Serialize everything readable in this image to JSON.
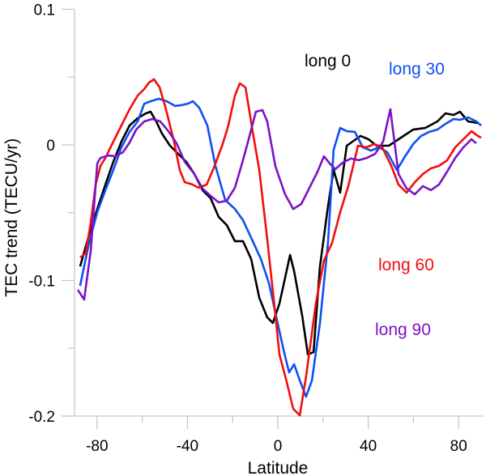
{
  "chart_data": {
    "type": "line",
    "title": "",
    "xlabel": "Latitude",
    "ylabel": "TEC trend (TECU/yr)",
    "xlim": [
      -90,
      90
    ],
    "ylim": [
      -0.2,
      0.1
    ],
    "x_ticks": [
      -80,
      -40,
      0,
      40,
      80
    ],
    "x_tick_labels": [
      "-80",
      "-40",
      "0",
      "40",
      "80"
    ],
    "x_minor_ticks": [
      -60,
      -20,
      20,
      60
    ],
    "y_ticks": [
      0.1,
      0,
      -0.1,
      -0.2
    ],
    "y_tick_labels": [
      "0.1",
      "0",
      "-0.1",
      "-0.2"
    ],
    "y_minor_ticks": [
      0.05,
      -0.05,
      -0.15
    ],
    "grid": false,
    "legend": "inline annotations",
    "series": [
      {
        "name": "long 0",
        "color": "#000000",
        "points": [
          [
            -87.5,
            -0.0896
          ],
          [
            -83.5,
            -0.0663
          ],
          [
            -79.9,
            -0.0472
          ],
          [
            -76.3,
            -0.0293
          ],
          [
            -72.8,
            -0.0125
          ],
          [
            -69.2,
            0.0024
          ],
          [
            -65.6,
            0.0143
          ],
          [
            -62.0,
            0.0197
          ],
          [
            -58.4,
            0.0233
          ],
          [
            -56.3,
            0.0245
          ],
          [
            -53.8,
            0.0173
          ],
          [
            -51.3,
            0.0084
          ],
          [
            -47.7,
            -0.0006
          ],
          [
            -44.1,
            -0.0066
          ],
          [
            -40.5,
            -0.0125
          ],
          [
            -36.9,
            -0.0215
          ],
          [
            -33.3,
            -0.0334
          ],
          [
            -29.7,
            -0.0394
          ],
          [
            -26.2,
            -0.0531
          ],
          [
            -22.6,
            -0.0591
          ],
          [
            -19.0,
            -0.071
          ],
          [
            -15.4,
            -0.071
          ],
          [
            -11.8,
            -0.0842
          ],
          [
            -8.2,
            -0.1128
          ],
          [
            -4.7,
            -0.1272
          ],
          [
            -2.2,
            -0.1313
          ],
          [
            0.7,
            -0.117
          ],
          [
            5.4,
            -0.0812
          ],
          [
            7.2,
            -0.0931
          ],
          [
            10.8,
            -0.126
          ],
          [
            13.3,
            -0.1546
          ],
          [
            15.8,
            -0.1528
          ],
          [
            18.6,
            -0.0901
          ],
          [
            22.2,
            -0.0454
          ],
          [
            24.7,
            -0.0185
          ],
          [
            27.6,
            -0.0352
          ],
          [
            30.5,
            -0.0006
          ],
          [
            33.0,
            0.0024
          ],
          [
            36.6,
            0.0066
          ],
          [
            40.1,
            0.0042
          ],
          [
            43.7,
            -0.0006
          ],
          [
            49.1,
            -0.0006
          ],
          [
            54.5,
            0.0054
          ],
          [
            59.9,
            0.0113
          ],
          [
            65.2,
            0.0125
          ],
          [
            70.6,
            0.0173
          ],
          [
            74.2,
            0.0233
          ],
          [
            77.8,
            0.0221
          ],
          [
            80.6,
            0.0245
          ],
          [
            84.2,
            0.0173
          ],
          [
            88.5,
            0.0161
          ]
        ]
      },
      {
        "name": "long 30",
        "color": "#0d4ff5",
        "points": [
          [
            -87.5,
            -0.1039
          ],
          [
            -83.5,
            -0.0722
          ],
          [
            -79.9,
            -0.0496
          ],
          [
            -76.3,
            -0.0334
          ],
          [
            -72.8,
            -0.0185
          ],
          [
            -69.2,
            -0.0018
          ],
          [
            -65.6,
            0.0096
          ],
          [
            -62.0,
            0.0173
          ],
          [
            -59.1,
            0.0304
          ],
          [
            -56.3,
            0.0322
          ],
          [
            -52.7,
            0.034
          ],
          [
            -49.1,
            0.0322
          ],
          [
            -45.5,
            0.0287
          ],
          [
            -42.7,
            0.0293
          ],
          [
            -39.8,
            0.0304
          ],
          [
            -37.6,
            0.0322
          ],
          [
            -34.8,
            0.0275
          ],
          [
            -31.2,
            0.0143
          ],
          [
            -27.6,
            -0.0155
          ],
          [
            -23.3,
            -0.0406
          ],
          [
            -19.0,
            -0.0472
          ],
          [
            -15.4,
            -0.0555
          ],
          [
            -11.1,
            -0.071
          ],
          [
            -7.5,
            -0.0842
          ],
          [
            -3.9,
            -0.1021
          ],
          [
            -0.4,
            -0.129
          ],
          [
            2.5,
            -0.151
          ],
          [
            5.0,
            -0.1678
          ],
          [
            7.2,
            -0.1618
          ],
          [
            9.7,
            -0.1737
          ],
          [
            12.5,
            -0.1857
          ],
          [
            15.1,
            -0.1737
          ],
          [
            18.6,
            -0.1319
          ],
          [
            22.2,
            -0.0722
          ],
          [
            24.7,
            -0.0036
          ],
          [
            27.6,
            0.0125
          ],
          [
            30.5,
            0.0101
          ],
          [
            34.1,
            0.0096
          ],
          [
            37.6,
            -0.0018
          ],
          [
            41.2,
            -0.0042
          ],
          [
            44.8,
            -0.0018
          ],
          [
            48.4,
            -0.0054
          ],
          [
            52.7,
            -0.0185
          ],
          [
            56.3,
            -0.0084
          ],
          [
            59.9,
            0.0006
          ],
          [
            63.4,
            0.0066
          ],
          [
            67.0,
            0.0096
          ],
          [
            70.6,
            0.0113
          ],
          [
            74.2,
            0.0155
          ],
          [
            77.8,
            0.0191
          ],
          [
            80.6,
            0.0185
          ],
          [
            84.2,
            0.0203
          ],
          [
            87.8,
            0.0173
          ],
          [
            90.0,
            0.0143
          ]
        ]
      },
      {
        "name": "long 60",
        "color": "#f20d0d",
        "points": [
          [
            -87.5,
            -0.083
          ],
          [
            -85.0,
            -0.08
          ],
          [
            -82.8,
            -0.0573
          ],
          [
            -80.6,
            -0.0293
          ],
          [
            -78.5,
            -0.0155
          ],
          [
            -76.3,
            -0.0096
          ],
          [
            -72.8,
            0.0024
          ],
          [
            -69.2,
            0.0143
          ],
          [
            -65.6,
            0.0263
          ],
          [
            -62.0,
            0.0364
          ],
          [
            -59.1,
            0.0412
          ],
          [
            -57.0,
            0.046
          ],
          [
            -54.8,
            0.0484
          ],
          [
            -52.3,
            0.0424
          ],
          [
            -49.5,
            0.0263
          ],
          [
            -45.9,
            0.0024
          ],
          [
            -43.4,
            -0.0185
          ],
          [
            -41.2,
            -0.0275
          ],
          [
            -39.8,
            -0.0281
          ],
          [
            -37.6,
            -0.0293
          ],
          [
            -35.1,
            -0.0316
          ],
          [
            -31.5,
            -0.0293
          ],
          [
            -28.0,
            -0.0155
          ],
          [
            -24.4,
            0.0006
          ],
          [
            -21.9,
            0.0143
          ],
          [
            -19.0,
            0.0364
          ],
          [
            -16.8,
            0.0454
          ],
          [
            -14.3,
            0.0424
          ],
          [
            -11.1,
            0.0096
          ],
          [
            -8.2,
            -0.0185
          ],
          [
            -4.7,
            -0.0693
          ],
          [
            -1.8,
            -0.1141
          ],
          [
            0.7,
            -0.1546
          ],
          [
            3.6,
            -0.1725
          ],
          [
            6.8,
            -0.1946
          ],
          [
            9.7,
            -0.1994
          ],
          [
            12.5,
            -0.1707
          ],
          [
            16.8,
            -0.117
          ],
          [
            20.4,
            -0.0854
          ],
          [
            24.0,
            -0.0722
          ],
          [
            27.6,
            -0.0496
          ],
          [
            31.2,
            -0.0304
          ],
          [
            35.5,
            -0.0006
          ],
          [
            39.1,
            -0.0018
          ],
          [
            42.7,
            0.0006
          ],
          [
            46.2,
            -0.0018
          ],
          [
            50.2,
            -0.0155
          ],
          [
            53.4,
            -0.0293
          ],
          [
            57.0,
            -0.0352
          ],
          [
            60.6,
            -0.0275
          ],
          [
            64.2,
            -0.0215
          ],
          [
            67.7,
            -0.0173
          ],
          [
            71.3,
            -0.0155
          ],
          [
            74.9,
            -0.0113
          ],
          [
            78.5,
            -0.0018
          ],
          [
            82.1,
            0.0042
          ],
          [
            85.7,
            0.0101
          ],
          [
            88.5,
            0.0066
          ],
          [
            90.0,
            0.0054
          ]
        ]
      },
      {
        "name": "long 90",
        "color": "#7b12c8",
        "points": [
          [
            -88.5,
            -0.1069
          ],
          [
            -85.7,
            -0.1141
          ],
          [
            -82.8,
            -0.0782
          ],
          [
            -79.9,
            -0.0137
          ],
          [
            -78.5,
            -0.0096
          ],
          [
            -74.9,
            -0.0078
          ],
          [
            -72.0,
            -0.0084
          ],
          [
            -68.5,
            -0.0054
          ],
          [
            -65.6,
            0.0018
          ],
          [
            -62.7,
            0.0113
          ],
          [
            -59.1,
            0.0173
          ],
          [
            -55.6,
            0.0191
          ],
          [
            -52.0,
            0.0173
          ],
          [
            -48.4,
            0.0101
          ],
          [
            -44.8,
            0.0012
          ],
          [
            -41.2,
            -0.0125
          ],
          [
            -36.9,
            -0.0215
          ],
          [
            -33.3,
            -0.0322
          ],
          [
            -29.7,
            -0.0376
          ],
          [
            -26.2,
            -0.0424
          ],
          [
            -22.6,
            -0.0412
          ],
          [
            -19.0,
            -0.0316
          ],
          [
            -15.4,
            -0.0113
          ],
          [
            -12.5,
            0.0066
          ],
          [
            -9.7,
            0.0245
          ],
          [
            -6.8,
            0.0257
          ],
          [
            -4.7,
            0.0173
          ],
          [
            -1.1,
            -0.0155
          ],
          [
            3.2,
            -0.0364
          ],
          [
            6.8,
            -0.0472
          ],
          [
            10.4,
            -0.0436
          ],
          [
            14.7,
            -0.0293
          ],
          [
            17.6,
            -0.0197
          ],
          [
            20.4,
            -0.0084
          ],
          [
            23.3,
            -0.0143
          ],
          [
            25.4,
            -0.0179
          ],
          [
            28.7,
            -0.0131
          ],
          [
            32.3,
            -0.0101
          ],
          [
            35.8,
            -0.0113
          ],
          [
            39.4,
            -0.0096
          ],
          [
            43.0,
            -0.0066
          ],
          [
            46.6,
            0.0024
          ],
          [
            49.8,
            0.0263
          ],
          [
            53.4,
            -0.0215
          ],
          [
            57.0,
            -0.0322
          ],
          [
            60.6,
            -0.0364
          ],
          [
            64.2,
            -0.0304
          ],
          [
            67.7,
            -0.0334
          ],
          [
            71.3,
            -0.0293
          ],
          [
            74.9,
            -0.0197
          ],
          [
            78.5,
            -0.0096
          ],
          [
            82.1,
            -0.0018
          ],
          [
            85.7,
            0.0042
          ],
          [
            87.8,
            0.0012
          ]
        ]
      }
    ],
    "annotations": [
      {
        "text": "long 0",
        "color": "#000000",
        "series": "long 0"
      },
      {
        "text": "long 30",
        "color": "#0d4ff5",
        "series": "long 30"
      },
      {
        "text": "long 60",
        "color": "#f20d0d",
        "series": "long 60"
      },
      {
        "text": "long 90",
        "color": "#7b12c8",
        "series": "long 90"
      }
    ]
  }
}
